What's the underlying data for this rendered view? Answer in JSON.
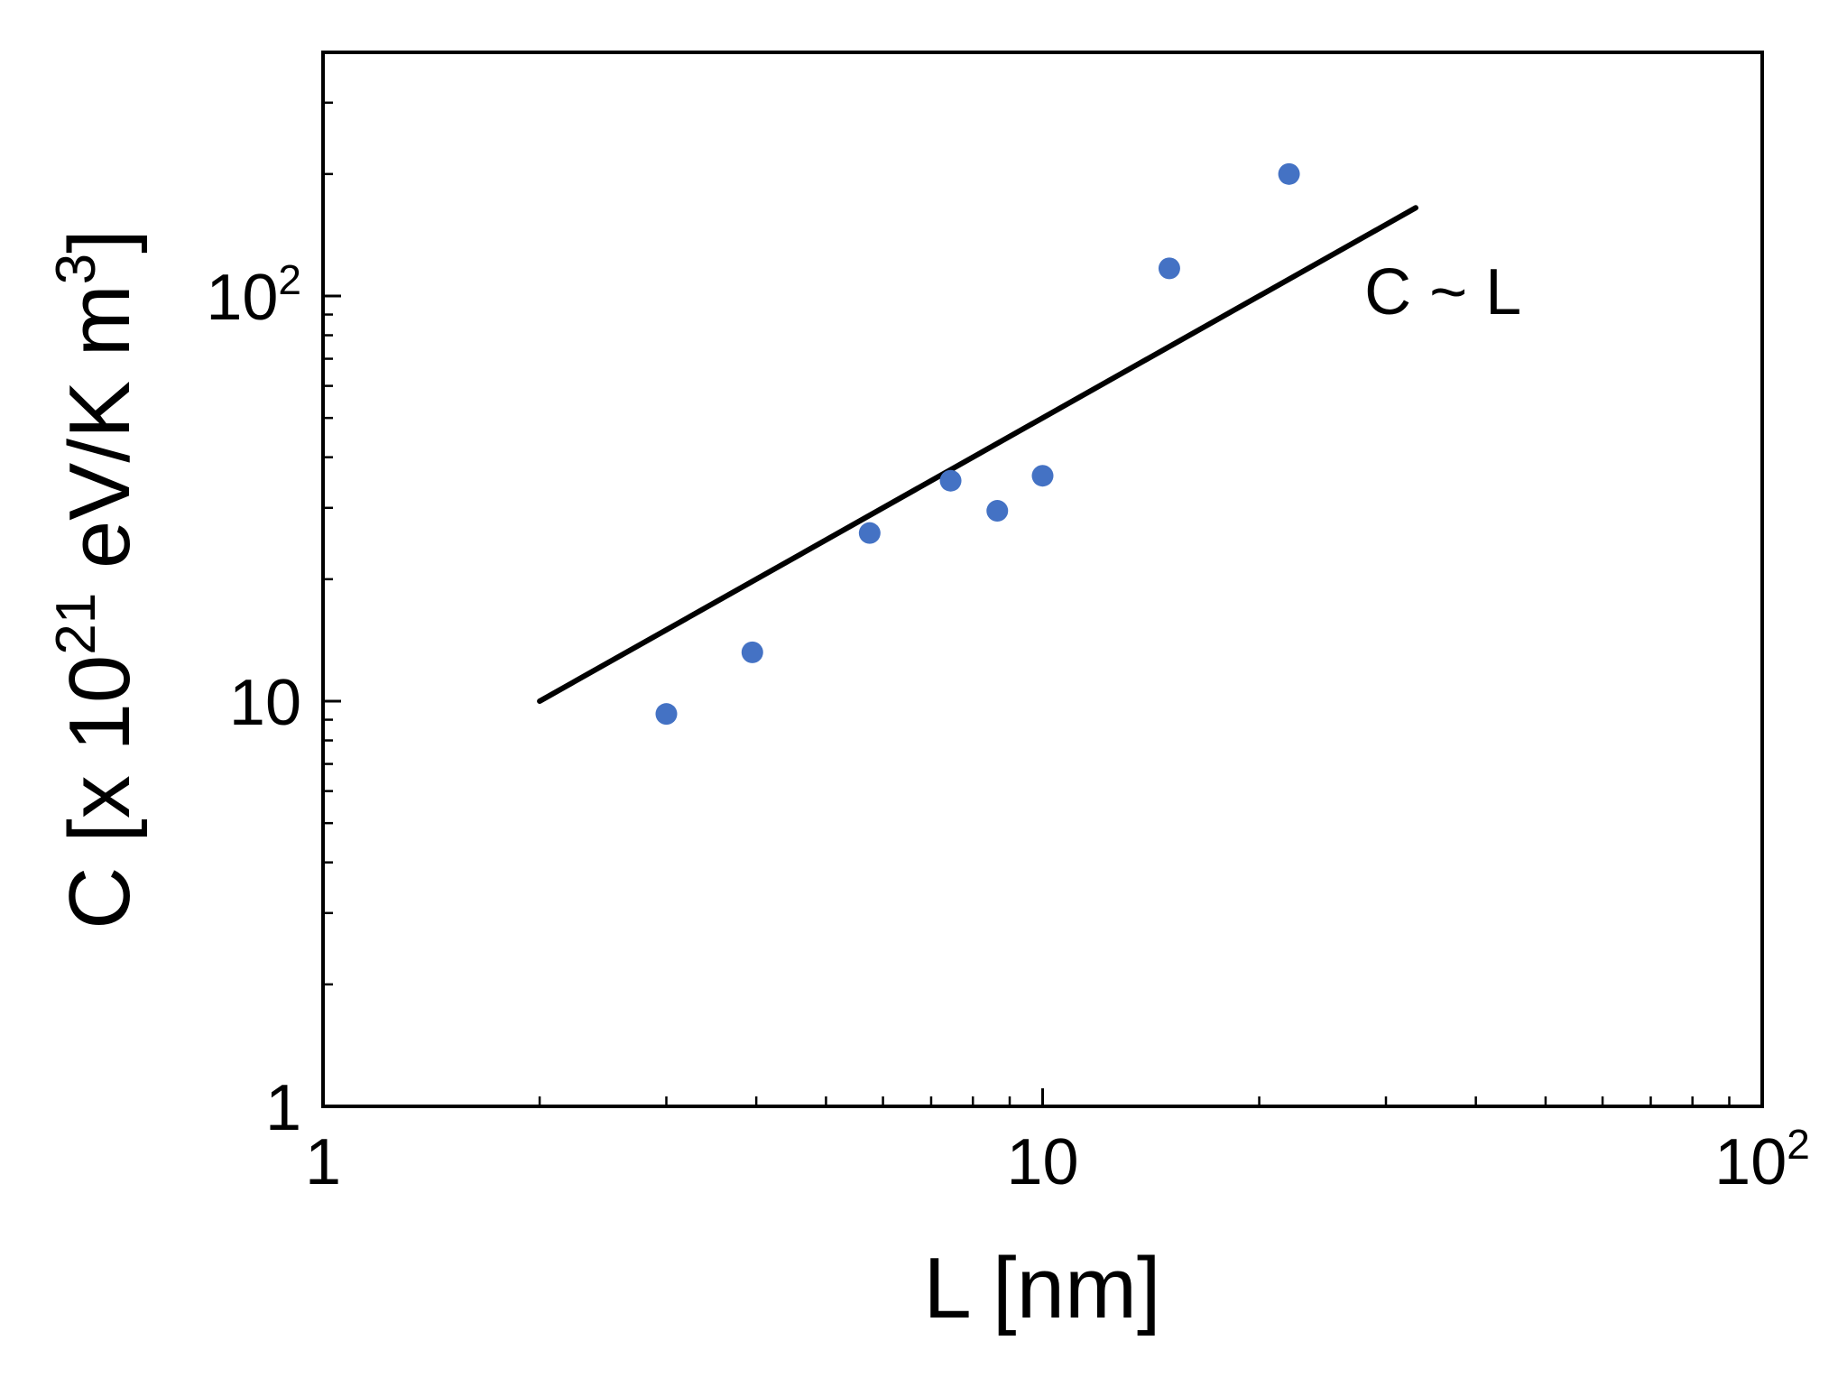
{
  "chart_data": {
    "type": "scatter",
    "xscale": "log",
    "yscale": "log",
    "xlim": [
      1,
      100
    ],
    "ylim": [
      1,
      400
    ],
    "xlabel": "L [nm]",
    "ylabel_parts": {
      "pre": "C [x 10",
      "exp": "21",
      "mid": " eV/K m",
      "exp2": "3",
      "post": "]"
    },
    "x_tick_labels": [
      {
        "value": 1,
        "base": "1",
        "exp": ""
      },
      {
        "value": 10,
        "base": "10",
        "exp": ""
      },
      {
        "value": 100,
        "base": "10",
        "exp": "2"
      }
    ],
    "y_tick_labels": [
      {
        "value": 1,
        "base": "1",
        "exp": ""
      },
      {
        "value": 10,
        "base": "10",
        "exp": ""
      },
      {
        "value": 100,
        "base": "10",
        "exp": "2"
      }
    ],
    "series": [
      {
        "kind": "points",
        "color": "#4472c4",
        "points": [
          {
            "x": 3.0,
            "y": 9.3
          },
          {
            "x": 3.95,
            "y": 13.2
          },
          {
            "x": 5.75,
            "y": 26.0
          },
          {
            "x": 7.45,
            "y": 35.0
          },
          {
            "x": 8.65,
            "y": 29.5
          },
          {
            "x": 10.0,
            "y": 36.0
          },
          {
            "x": 15.0,
            "y": 117.0
          },
          {
            "x": 22.0,
            "y": 200.0
          }
        ]
      },
      {
        "kind": "line",
        "color": "#000000",
        "points": [
          {
            "x": 2.0,
            "y": 10.0
          },
          {
            "x": 33.0,
            "y": 165.0
          }
        ]
      }
    ],
    "annotations": [
      {
        "text": "C ~ L",
        "x": 36.0,
        "y": 102.0
      }
    ]
  }
}
